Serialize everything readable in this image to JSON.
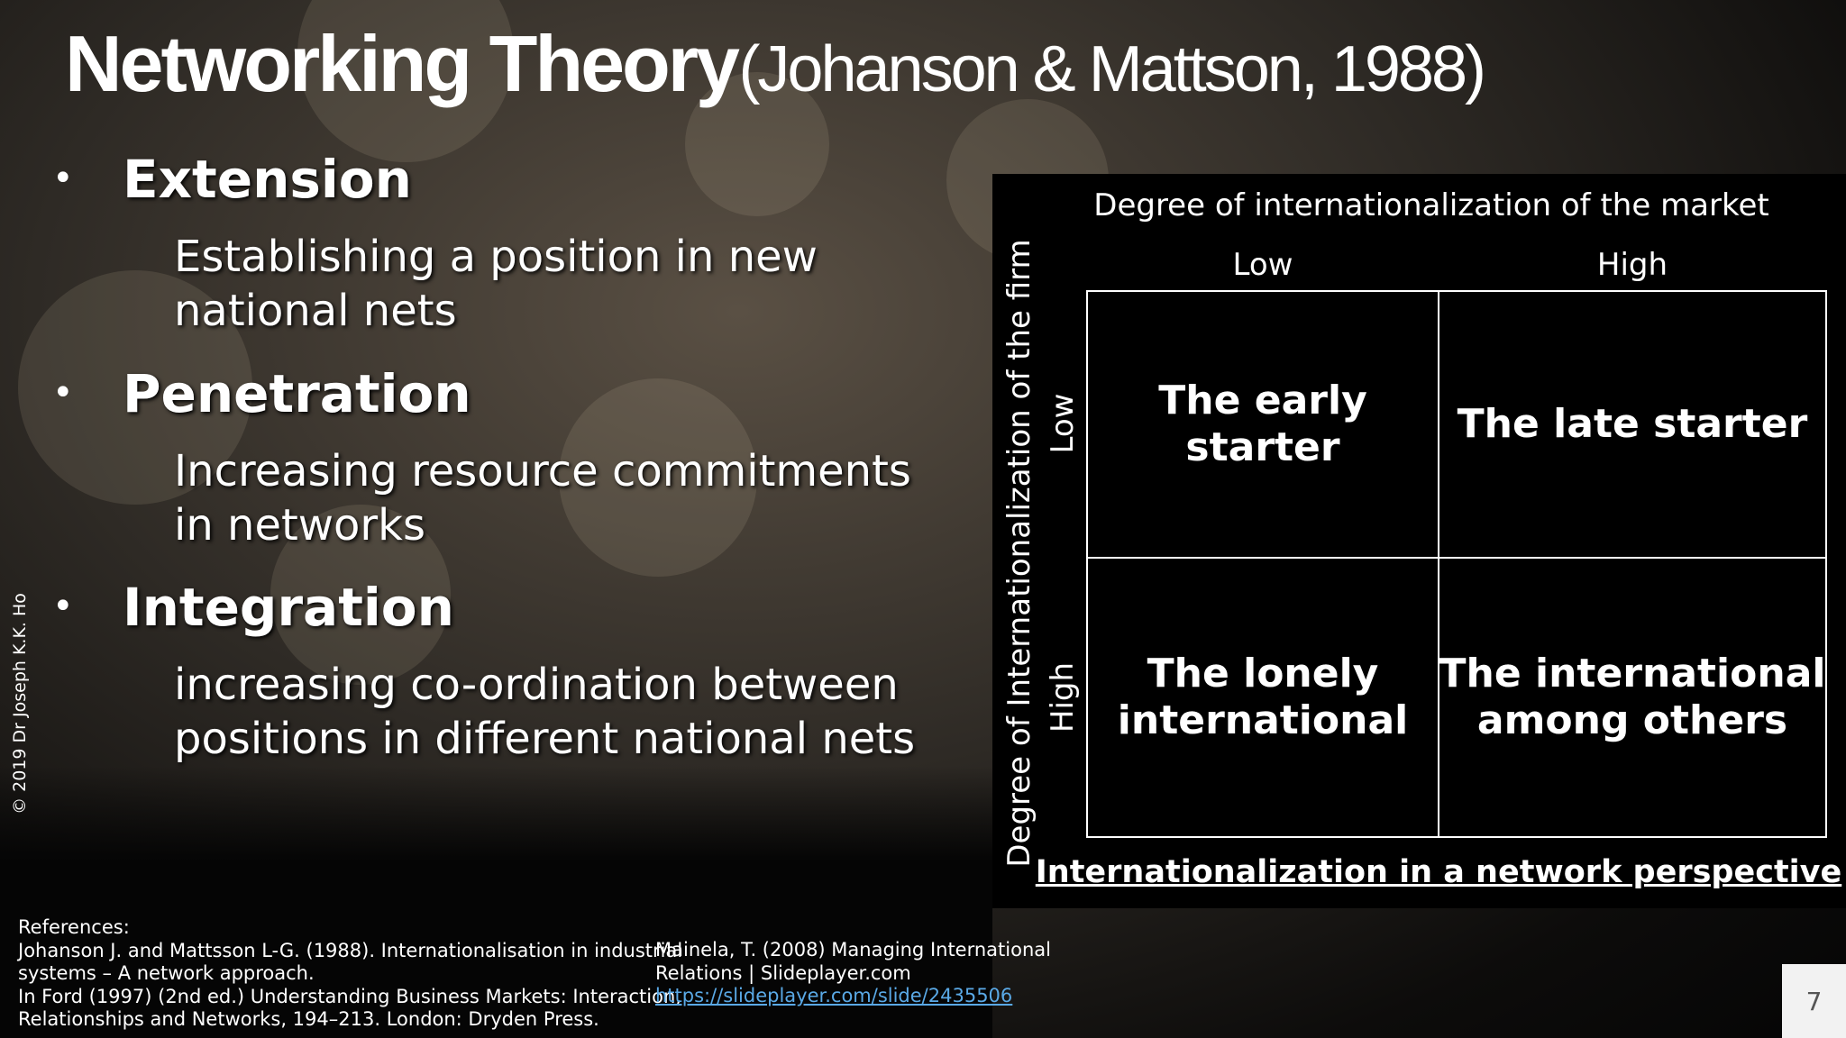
{
  "header": {
    "title": "Networking Theory",
    "citation": "(Johanson & Mattson, 1988)"
  },
  "bullets": [
    {
      "heading": "Extension",
      "lines": [
        "Establishing a position in new",
        "national nets"
      ]
    },
    {
      "heading": "Penetration",
      "lines": [
        "Increasing resource commitments",
        "in networks"
      ]
    },
    {
      "heading": "Integration",
      "lines": [
        "increasing co-ordination between",
        "positions in different national nets"
      ]
    }
  ],
  "matrix": {
    "x_axis_label": "Degree of internationalization of the market",
    "x_labels": [
      "Low",
      "High"
    ],
    "y_axis_label": "Degree of Internationalization of the firm",
    "y_labels": [
      "Low",
      "High"
    ],
    "cells": [
      [
        [
          "The early starter"
        ],
        [
          "The late starter"
        ]
      ],
      [
        [
          "The lonely",
          "international"
        ],
        [
          "The international",
          "among others"
        ]
      ]
    ],
    "caption": "Internationalization in a network perspective"
  },
  "references": {
    "heading": "References:",
    "left": [
      "Johanson J. and Mattsson L-G. (1988). Internationalisation in industrial",
      "systems – A network approach.",
      "In Ford (1997) (2nd ed.) Understanding Business Markets: Interaction,",
      "Relationships and Networks, 194–213. London: Dryden Press."
    ],
    "right": [
      "Mainela, T. (2008) Managing International",
      "Relations | Slideplayer.com"
    ],
    "link": "https://slideplayer.com/slide/2435506"
  },
  "copyright": "© 2019 Dr Joseph K.K. Ho",
  "page_number": "7"
}
